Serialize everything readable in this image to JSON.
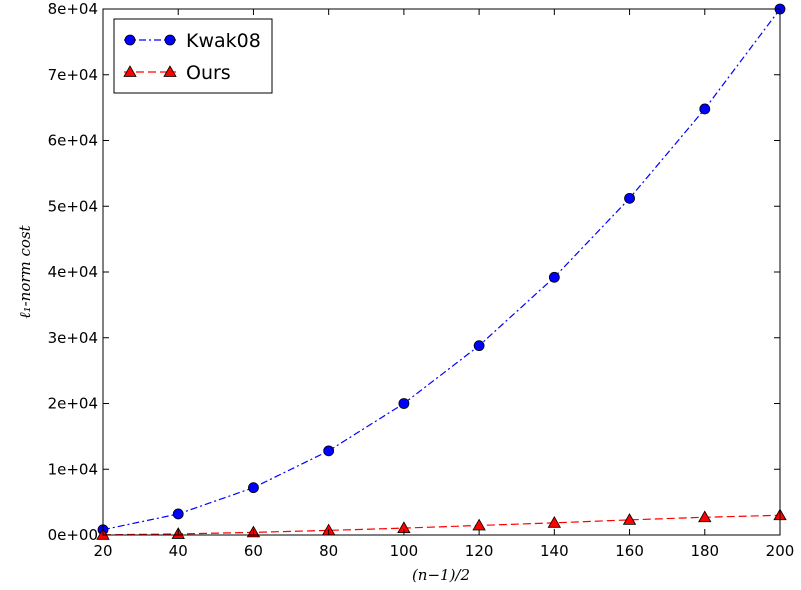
{
  "chart_data": {
    "type": "line",
    "xlabel": "(n−1)/2",
    "ylabel": "ℓ₁-norm cost",
    "xlim": [
      20,
      200
    ],
    "ylim": [
      0,
      80000
    ],
    "x": [
      20,
      40,
      60,
      80,
      100,
      120,
      140,
      160,
      180,
      200
    ],
    "x_ticks": [
      "20",
      "40",
      "60",
      "80",
      "100",
      "120",
      "140",
      "160",
      "180",
      "200"
    ],
    "y_ticks": [
      {
        "value": 0,
        "label": "0e+00"
      },
      {
        "value": 10000,
        "label": "1e+04"
      },
      {
        "value": 20000,
        "label": "2e+04"
      },
      {
        "value": 30000,
        "label": "3e+04"
      },
      {
        "value": 40000,
        "label": "4e+04"
      },
      {
        "value": 50000,
        "label": "5e+04"
      },
      {
        "value": 60000,
        "label": "6e+04"
      },
      {
        "value": 70000,
        "label": "7e+04"
      },
      {
        "value": 80000,
        "label": "8e+04"
      }
    ],
    "grid": false,
    "legend_position": "top-left",
    "series": [
      {
        "name": "Kwak08",
        "color": "#0000ff",
        "marker": "circle",
        "line_style": "dash-dot",
        "values": [
          800,
          3200,
          7200,
          12800,
          20000,
          28800,
          39200,
          51200,
          64800,
          80000
        ]
      },
      {
        "name": "Ours",
        "color": "#ff0000",
        "marker": "triangle",
        "line_style": "dashed",
        "values": [
          30,
          160,
          400,
          700,
          1050,
          1450,
          1850,
          2300,
          2700,
          3000
        ]
      }
    ]
  }
}
